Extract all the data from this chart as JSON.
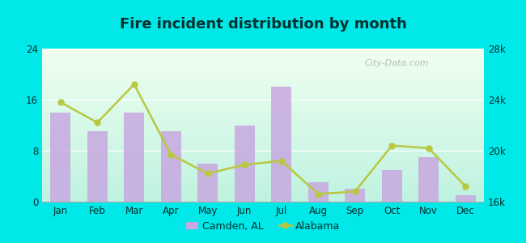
{
  "title": "Fire incident distribution by month",
  "months": [
    "Jan",
    "Feb",
    "Mar",
    "Apr",
    "May",
    "Jun",
    "Jul",
    "Aug",
    "Sep",
    "Oct",
    "Nov",
    "Dec"
  ],
  "camden_values": [
    14,
    11,
    14,
    11,
    6,
    12,
    18,
    3,
    2,
    5,
    7,
    1
  ],
  "alabama_values": [
    23800,
    22200,
    25200,
    19700,
    18200,
    18900,
    19200,
    16600,
    16800,
    20400,
    20200,
    17200
  ],
  "bar_color": "#c8a8e0",
  "line_color": "#b8c840",
  "line_marker": "o",
  "plot_bg_top": "#f0fdf0",
  "plot_bg_bottom": "#c8f0e0",
  "outer_bg": "#00e8e8",
  "left_ylim": [
    0,
    24
  ],
  "left_yticks": [
    0,
    8,
    16,
    24
  ],
  "right_ylim": [
    16000,
    28000
  ],
  "right_yticks": [
    16000,
    20000,
    24000,
    28000
  ],
  "right_yticklabels": [
    "16k",
    "20k",
    "24k",
    "28k"
  ],
  "legend_camden": "Camden, AL",
  "legend_alabama": "Alabama",
  "watermark": "City-Data.com",
  "title_color": "#003030",
  "tick_color": "#003030"
}
